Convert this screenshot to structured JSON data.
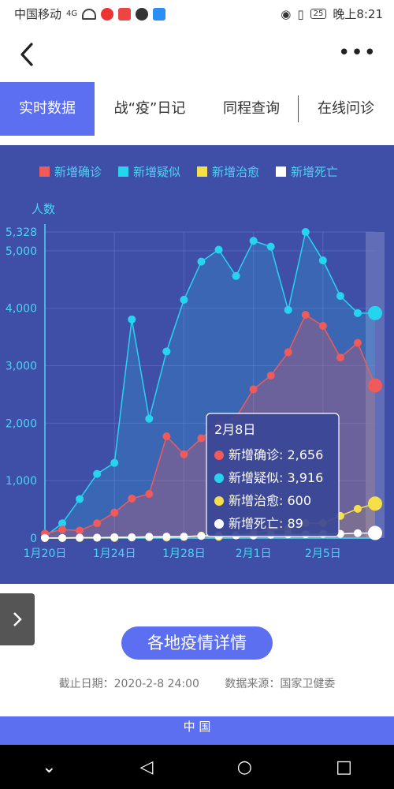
{
  "status": {
    "carrier": "中国移动",
    "network": "4G",
    "battery": "25",
    "time": "晚上8:21"
  },
  "tabs": [
    {
      "label": "实时数据"
    },
    {
      "label": "战“疫”日记"
    },
    {
      "label": "同程查询"
    },
    {
      "label": "在线问诊"
    }
  ],
  "chart_data": {
    "type": "line",
    "ylabel": "人数",
    "x_ticks": [
      "1月20日",
      "1月24日",
      "1月28日",
      "2月1日",
      "2月5日"
    ],
    "y_ticks": [
      "0",
      "1,000",
      "2,000",
      "3,000",
      "4,000",
      "5,000",
      "5,328"
    ],
    "ylim": [
      0,
      5328
    ],
    "x": [
      "1月20日",
      "1月21日",
      "1月22日",
      "1月23日",
      "1月24日",
      "1月25日",
      "1月26日",
      "1月27日",
      "1月28日",
      "1月29日",
      "1月30日",
      "1月31日",
      "2月1日",
      "2月2日",
      "2月3日",
      "2月4日",
      "2月5日",
      "2月6日",
      "2月7日",
      "2月8日"
    ],
    "series": [
      {
        "name": "新增确诊",
        "color": "#f05a5a",
        "values": [
          77,
          149,
          131,
          259,
          444,
          688,
          769,
          1771,
          1459,
          1737,
          1982,
          2102,
          2590,
          2829,
          3235,
          3887,
          3694,
          3143,
          3399,
          2656
        ]
      },
      {
        "name": "新增疑似",
        "color": "#25d5f0",
        "values": [
          27,
          257,
          680,
          1118,
          1309,
          3806,
          2077,
          3248,
          4148,
          4812,
          5019,
          4562,
          5173,
          5072,
          3971,
          5328,
          4833,
          4214,
          3916,
          3916
        ]
      },
      {
        "name": "新增治愈",
        "color": "#f5e04a",
        "values": [
          0,
          0,
          1,
          6,
          3,
          11,
          15,
          9,
          20,
          43,
          21,
          47,
          85,
          147,
          157,
          262,
          261,
          387,
          510,
          600
        ]
      },
      {
        "name": "新增死亡",
        "color": "#ffffff",
        "values": [
          3,
          3,
          8,
          8,
          16,
          15,
          24,
          26,
          26,
          38,
          43,
          46,
          45,
          57,
          64,
          65,
          73,
          73,
          86,
          89
        ]
      }
    ],
    "legend_position": "top",
    "grid": true,
    "tooltip": {
      "title": "2月8日",
      "rows": [
        {
          "label": "新增确诊: 2,656"
        },
        {
          "label": "新增疑似: 3,916"
        },
        {
          "label": "新增治愈: 600"
        },
        {
          "label": "新增死亡: 89"
        }
      ]
    }
  },
  "detail_button": "各地疫情详情",
  "meta": {
    "cutoff": "截止日期：2020-2-8 24:00",
    "source": "数据来源：国家卫健委"
  },
  "bottom": {
    "title": "中 国"
  }
}
